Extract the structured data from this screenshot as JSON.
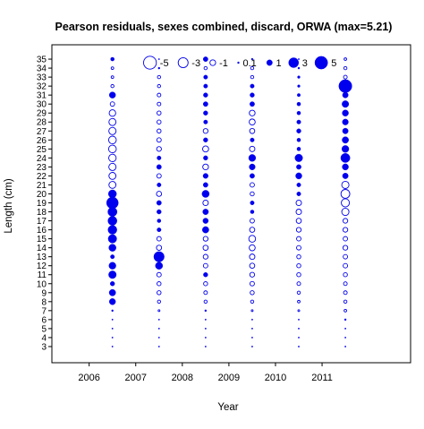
{
  "chart_data": {
    "type": "scatter",
    "title": "Pearson residuals, sexes combined, discard, ORWA (max=5.21)",
    "xlabel": "Year",
    "ylabel": "Length (cm)",
    "x_ticks": [
      "2006",
      "2007",
      "2008",
      "2009",
      "2010",
      "2011"
    ],
    "y_ticks": [
      "3",
      "4",
      "5",
      "6",
      "7",
      "8",
      "9",
      "10",
      "11",
      "12",
      "13",
      "14",
      "15",
      "16",
      "17",
      "18",
      "19",
      "20",
      "21",
      "22",
      "23",
      "24",
      "25",
      "26",
      "27",
      "28",
      "29",
      "30",
      "31",
      "32",
      "33",
      "34",
      "35"
    ],
    "xlim": [
      2005.2,
      2012.9
    ],
    "ylim": [
      1.2,
      36.6
    ],
    "legend": {
      "placement": "top",
      "entries": [
        {
          "label": "-5",
          "value": -5
        },
        {
          "label": "-3",
          "value": -3
        },
        {
          "label": "-1",
          "value": -1
        },
        {
          "label": "0.1",
          "value": 0.1
        },
        {
          "label": "1",
          "value": 1
        },
        {
          "label": "3",
          "value": 3
        },
        {
          "label": "5",
          "value": 5
        }
      ]
    },
    "colors": {
      "bubble": "#0000ee",
      "frame": "#000000"
    },
    "bubble_scale": "area proportional to |residual|; filled = positive, open = negative",
    "series": [
      {
        "year": 2006.5,
        "lengths": [
          3,
          4,
          5,
          6,
          7,
          8,
          9,
          10,
          11,
          12,
          13,
          14,
          15,
          16,
          17,
          18,
          19,
          20,
          21,
          22,
          23,
          24,
          25,
          26,
          27,
          28,
          29,
          30,
          31,
          32,
          33,
          34,
          35
        ],
        "residuals": [
          0.05,
          0.05,
          0.05,
          0.05,
          0.1,
          1.2,
          1.3,
          0.6,
          1.8,
          1.5,
          0.5,
          1.6,
          2.2,
          2.4,
          2.5,
          2.6,
          4.2,
          2.0,
          -1.5,
          -1.5,
          -1.6,
          -1.7,
          -1.8,
          -1.8,
          -1.6,
          -1.5,
          -1.3,
          -0.6,
          1.2,
          -0.3,
          -0.2,
          -0.2,
          0.4
        ]
      },
      {
        "year": 2007.5,
        "lengths": [
          3,
          4,
          5,
          6,
          7,
          8,
          9,
          10,
          11,
          12,
          13,
          14,
          15,
          16,
          17,
          18,
          19,
          20,
          21,
          22,
          23,
          24,
          25,
          26,
          27,
          28,
          29,
          30,
          31,
          32,
          33,
          34,
          35
        ],
        "residuals": [
          0.05,
          0.05,
          0.05,
          0.05,
          -0.1,
          -0.3,
          -0.5,
          -0.5,
          -0.6,
          1.6,
          3.3,
          -0.8,
          -0.6,
          0.5,
          0.4,
          0.6,
          0.7,
          -0.8,
          0.5,
          -0.6,
          0.7,
          0.5,
          -0.7,
          -0.6,
          -0.5,
          -0.5,
          -0.5,
          -0.4,
          -0.4,
          -0.3,
          -0.3,
          0.1,
          0.05
        ]
      },
      {
        "year": 2008.5,
        "lengths": [
          3,
          4,
          5,
          6,
          7,
          8,
          9,
          10,
          11,
          12,
          13,
          14,
          15,
          16,
          17,
          18,
          19,
          20,
          21,
          22,
          23,
          24,
          25,
          26,
          27,
          28,
          29,
          30,
          31,
          32,
          33,
          34,
          35
        ],
        "residuals": [
          0.05,
          0.05,
          0.05,
          0.05,
          0.1,
          -0.3,
          -0.4,
          -0.5,
          0.6,
          -0.6,
          -0.7,
          -0.8,
          -0.7,
          1.3,
          0.9,
          1.0,
          -0.9,
          1.6,
          0.7,
          0.8,
          -1.0,
          0.6,
          -1.1,
          0.6,
          -0.7,
          0.5,
          0.6,
          0.7,
          0.6,
          0.5,
          0.5,
          -0.3,
          0.7
        ]
      },
      {
        "year": 2009.5,
        "lengths": [
          3,
          4,
          5,
          6,
          7,
          8,
          9,
          10,
          11,
          12,
          13,
          14,
          15,
          16,
          17,
          18,
          19,
          20,
          21,
          22,
          23,
          24,
          25,
          26,
          27,
          28,
          29,
          30,
          31,
          32,
          33,
          34,
          35
        ],
        "residuals": [
          0.05,
          0.05,
          0.05,
          0.05,
          -0.1,
          -0.3,
          -0.5,
          -0.6,
          -0.7,
          -0.8,
          -0.9,
          -1.1,
          -1.4,
          -0.8,
          -0.6,
          0.4,
          0.5,
          -0.5,
          -0.6,
          0.7,
          1.1,
          1.5,
          -0.9,
          0.5,
          -0.8,
          -1.1,
          -1.0,
          0.7,
          0.6,
          0.5,
          -0.3,
          -0.3,
          0.1
        ]
      },
      {
        "year": 2010.5,
        "lengths": [
          3,
          4,
          5,
          6,
          7,
          8,
          9,
          10,
          11,
          12,
          13,
          14,
          15,
          16,
          17,
          18,
          19,
          20,
          21,
          22,
          23,
          24,
          25,
          26,
          27,
          28,
          29,
          30,
          31,
          32,
          33,
          34,
          35
        ],
        "residuals": [
          0.05,
          0.05,
          0.05,
          0.05,
          -0.1,
          -0.2,
          -0.3,
          -0.4,
          -0.5,
          -0.5,
          -0.5,
          -0.6,
          -0.6,
          -0.7,
          -0.8,
          -0.9,
          -0.9,
          0.5,
          0.5,
          1.2,
          0.7,
          1.8,
          0.4,
          0.4,
          0.6,
          0.5,
          0.4,
          0.4,
          0.3,
          0.2,
          0.2,
          0.1,
          0.05
        ]
      },
      {
        "year": 2011.5,
        "lengths": [
          3,
          4,
          5,
          6,
          7,
          8,
          9,
          10,
          11,
          12,
          13,
          14,
          15,
          16,
          17,
          18,
          19,
          20,
          21,
          22,
          23,
          24,
          25,
          26,
          27,
          28,
          29,
          30,
          31,
          32,
          33,
          34,
          35
        ],
        "residuals": [
          0.05,
          0.05,
          0.05,
          0.1,
          -0.2,
          -0.3,
          -0.4,
          -0.4,
          -0.5,
          -0.6,
          -0.6,
          -0.7,
          -0.6,
          -0.7,
          -0.7,
          -1.6,
          -2.0,
          -2.4,
          -1.6,
          1.0,
          1.2,
          2.6,
          1.5,
          1.3,
          1.0,
          1.1,
          1.2,
          1.4,
          1.0,
          5.21,
          -0.4,
          -0.3,
          -0.2
        ]
      }
    ]
  }
}
